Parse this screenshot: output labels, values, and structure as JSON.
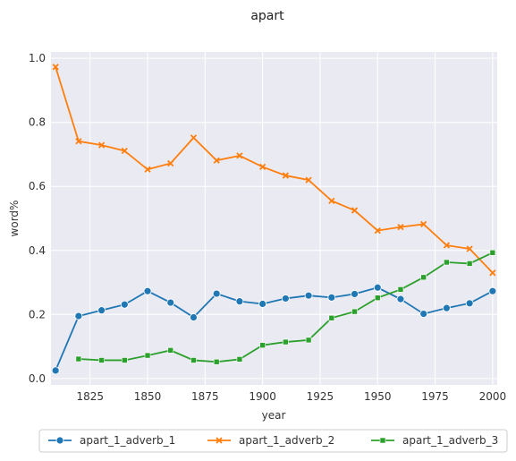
{
  "chart_data": {
    "type": "line",
    "title": "apart",
    "xlabel": "year",
    "ylabel": "word%",
    "xlim": [
      1808,
      2002
    ],
    "ylim": [
      -0.02,
      1.02
    ],
    "xticks": [
      "1825",
      "1850",
      "1875",
      "1900",
      "1925",
      "1950",
      "1975",
      "2000"
    ],
    "yticks": [
      "0.0",
      "0.2",
      "0.4",
      "0.6",
      "0.8",
      "1.0"
    ],
    "grid": true,
    "legend_placement": "bottom-center",
    "colors": {
      "background": "#eaeaf2",
      "grid": "#ffffff"
    },
    "series": [
      {
        "name": "apart_1_adverb_1",
        "color": "#1f77b4",
        "marker": "circle",
        "x": [
          1810,
          1820,
          1830,
          1840,
          1850,
          1860,
          1870,
          1880,
          1890,
          1900,
          1910,
          1920,
          1930,
          1940,
          1950,
          1960,
          1970,
          1980,
          1990,
          2000
        ],
        "y": [
          0.025,
          0.195,
          0.213,
          0.231,
          0.273,
          0.237,
          0.191,
          0.265,
          0.241,
          0.233,
          0.25,
          0.259,
          0.253,
          0.264,
          0.284,
          0.248,
          0.202,
          0.22,
          0.235,
          0.273
        ]
      },
      {
        "name": "apart_1_adverb_2",
        "color": "#ff7f0e",
        "marker": "x",
        "x": [
          1810,
          1820,
          1830,
          1840,
          1850,
          1860,
          1870,
          1880,
          1890,
          1900,
          1910,
          1920,
          1930,
          1940,
          1950,
          1960,
          1970,
          1980,
          1990,
          2000
        ],
        "y": [
          0.973,
          0.741,
          0.729,
          0.711,
          0.653,
          0.672,
          0.752,
          0.681,
          0.696,
          0.661,
          0.634,
          0.62,
          0.555,
          0.525,
          0.462,
          0.473,
          0.482,
          0.416,
          0.405,
          0.33
        ]
      },
      {
        "name": "apart_1_adverb_3",
        "color": "#2ca02c",
        "marker": "square",
        "x": [
          1820,
          1830,
          1840,
          1850,
          1860,
          1870,
          1880,
          1890,
          1900,
          1910,
          1920,
          1930,
          1940,
          1950,
          1960,
          1970,
          1980,
          1990,
          2000
        ],
        "y": [
          0.061,
          0.057,
          0.057,
          0.072,
          0.088,
          0.057,
          0.052,
          0.06,
          0.104,
          0.114,
          0.12,
          0.189,
          0.209,
          0.252,
          0.278,
          0.316,
          0.363,
          0.359,
          0.393
        ]
      }
    ]
  }
}
